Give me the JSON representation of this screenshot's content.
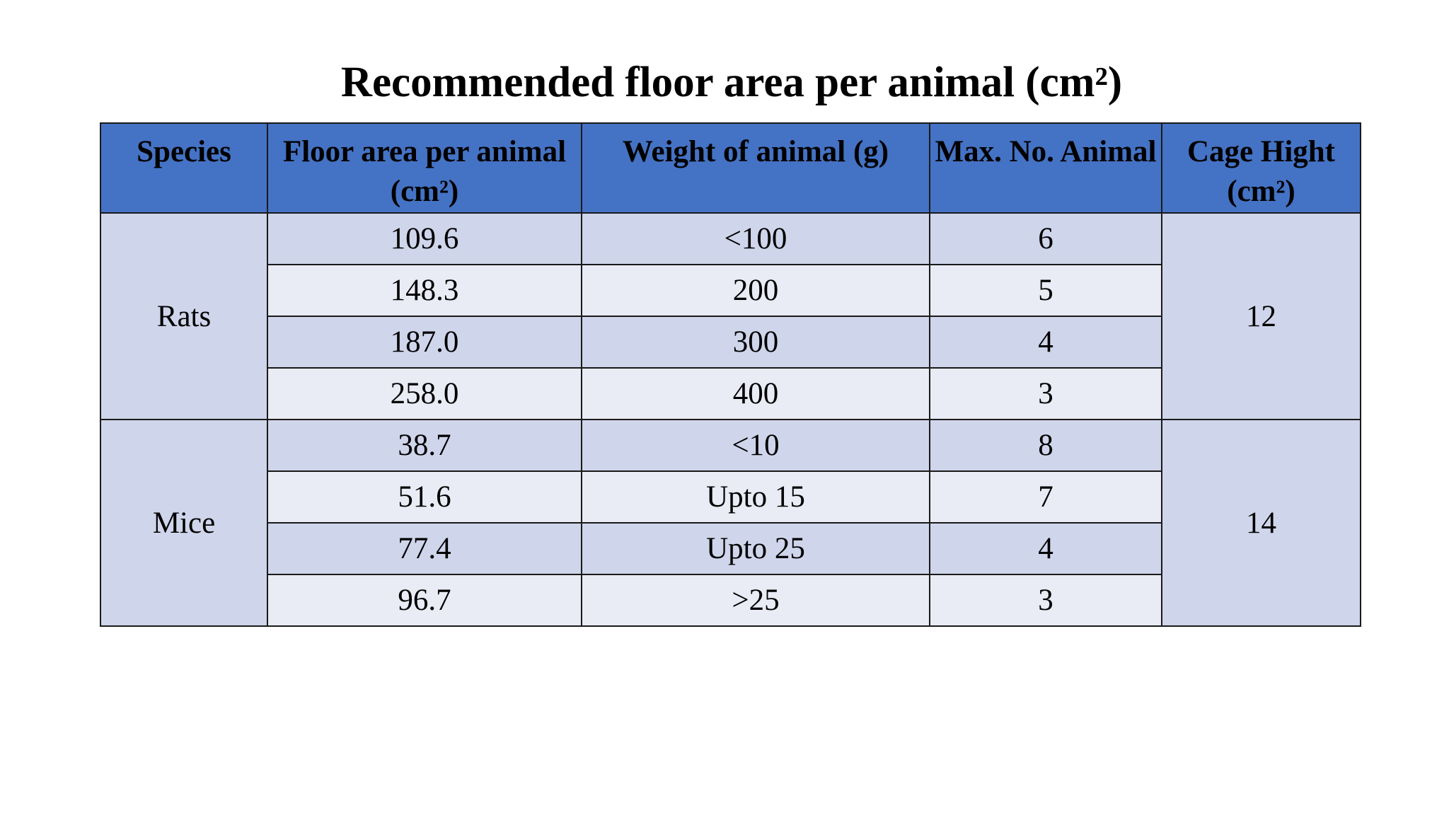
{
  "title": "Recommended floor area per animal (cm²)",
  "columns": {
    "species": "Species",
    "floor_area": "Floor area per animal (cm²)",
    "weight": "Weight of animal (g)",
    "max_no": "Max. No. Animal",
    "cage_height": "Cage Hight (cm²)"
  },
  "groups": [
    {
      "species": "Rats",
      "cage_height": "12",
      "rows": [
        {
          "floor_area": "109.6",
          "weight": "<100",
          "max_no": "6"
        },
        {
          "floor_area": "148.3",
          "weight": "200",
          "max_no": "5"
        },
        {
          "floor_area": "187.0",
          "weight": "300",
          "max_no": "4"
        },
        {
          "floor_area": "258.0",
          "weight": "400",
          "max_no": "3"
        }
      ]
    },
    {
      "species": "Mice",
      "cage_height": "14",
      "rows": [
        {
          "floor_area": "38.7",
          "weight": "<10",
          "max_no": "8"
        },
        {
          "floor_area": "51.6",
          "weight": "Upto 15",
          "max_no": "7"
        },
        {
          "floor_area": "77.4",
          "weight": "Upto 25",
          "max_no": "4"
        },
        {
          "floor_area": "96.7",
          "weight": ">25",
          "max_no": "3"
        }
      ]
    }
  ]
}
